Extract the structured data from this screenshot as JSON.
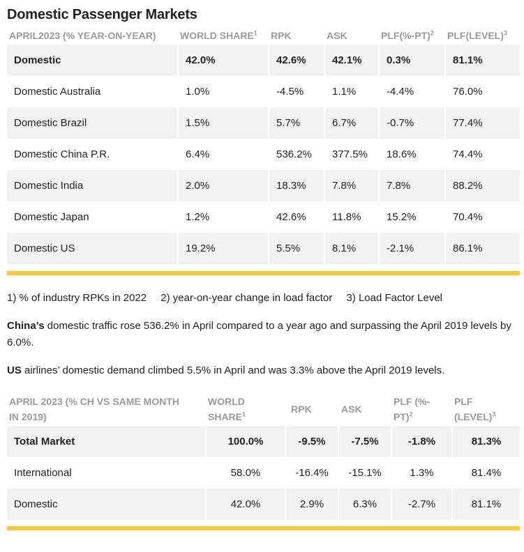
{
  "title": "Domestic Passenger Markets",
  "table1": {
    "headers": [
      "APRIL2023 (% YEAR-ON-YEAR)",
      "WORLD SHARE",
      "RPK",
      "ASK",
      "PLF(%-PT)",
      "PLF(LEVEL)"
    ],
    "header_sups": {
      "share": "1",
      "plfpt": "2",
      "plflevel": "3"
    },
    "rows": [
      [
        "Domestic",
        "42.0%",
        "42.6%",
        "42.1%",
        "0.3%",
        "81.1%"
      ],
      [
        "Domestic Australia",
        "1.0%",
        "-4.5%",
        "1.1%",
        "-4.4%",
        "76.0%"
      ],
      [
        "Domestic Brazil",
        "1.5%",
        "5.7%",
        "6.7%",
        "-0.7%",
        "77.4%"
      ],
      [
        "Domestic China P.R.",
        "6.4%",
        "536.2%",
        "377.5%",
        "18.6%",
        "74.4%"
      ],
      [
        "Domestic India",
        "2.0%",
        "18.3%",
        "7.8%",
        "7.8%",
        "88.2%"
      ],
      [
        "Domestic Japan",
        "1.2%",
        "42.6%",
        "11.8%",
        "15.2%",
        "70.4%"
      ],
      [
        "Domestic US",
        "19.2%",
        "5.5%",
        "8.1%",
        "-2.1%",
        "86.1%"
      ]
    ]
  },
  "footnotes": [
    "1) % of industry RPKs in 2022",
    "2) year-on-year change in load factor",
    "3) Load Factor Level"
  ],
  "paragraphs": {
    "china_bold": "China’s",
    "china_rest": " domestic traffic rose 536.2% in April compared to a year ago and surpassing the April 2019 levels by 6.0%.",
    "us_bold": "US",
    "us_rest": " airlines’ domestic demand climbed 5.5% in April and was 3.3% above the April 2019 levels."
  },
  "table2": {
    "headers": {
      "col0_line1": "APRIL 2023 (% CH VS SAME MONTH",
      "col0_line2": "IN 2019)",
      "share_line1": "WORLD",
      "share_line2": "SHARE",
      "rpk": "RPK",
      "ask": "ASK",
      "plfpt_line1": "PLF (%-",
      "plfpt_line2": "PT)",
      "plflevel_line1": "PLF",
      "plflevel_line2": "(LEVEL)"
    },
    "header_sups": {
      "share": "1",
      "plfpt": "2",
      "plflevel": "3"
    },
    "rows": [
      [
        "Total Market",
        "100.0%",
        "-9.5%",
        "-7.5%",
        "-1.8%",
        "81.3%"
      ],
      [
        "International",
        "58.0%",
        "-16.4%",
        "-15.1%",
        "1.3%",
        "81.4%"
      ],
      [
        "Domestic",
        "42.0%",
        "2.9%",
        "6.3%",
        "-2.7%",
        "81.1%"
      ]
    ]
  },
  "colors": {
    "accent": "#f5c842",
    "row_shade": "#f2f2f2",
    "header_text": "#9a9a9a"
  }
}
